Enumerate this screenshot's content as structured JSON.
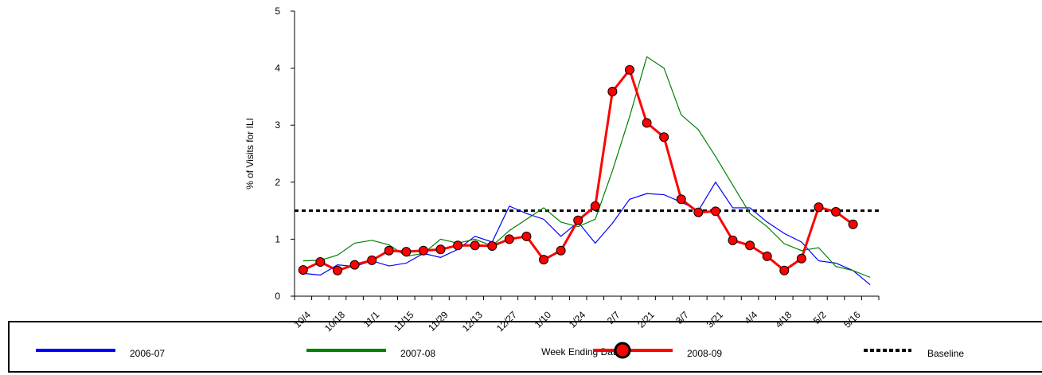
{
  "chart_data": {
    "type": "line",
    "y_label": "% of Visits for ILI",
    "x_label": "Week Ending Dates",
    "categories": [
      "10/4",
      null,
      "10/18",
      null,
      "11/1",
      null,
      "11/15",
      null,
      "11/29",
      null,
      "12/13",
      null,
      "12/27",
      null,
      "1/10",
      null,
      "1/24",
      null,
      "2/7",
      null,
      "2/21",
      null,
      "3/7",
      null,
      "3/21",
      null,
      "4/4",
      null,
      "4/18",
      null,
      "5/2",
      null,
      "5/16",
      null
    ],
    "series": [
      {
        "name": "2006-07",
        "color": "#0000ff",
        "values": [
          0.4,
          0.37,
          0.55,
          0.52,
          0.62,
          0.53,
          0.58,
          0.75,
          0.68,
          0.82,
          1.05,
          0.95,
          1.58,
          1.45,
          1.35,
          1.05,
          1.3,
          0.93,
          1.28,
          1.7,
          1.8,
          1.78,
          1.65,
          1.5,
          2.0,
          1.55,
          1.55,
          1.3,
          1.1,
          0.95,
          0.62,
          0.58,
          0.45,
          0.2
        ]
      },
      {
        "name": "2007-08",
        "color": "#008000",
        "values": [
          0.62,
          0.63,
          0.72,
          0.93,
          0.98,
          0.9,
          0.7,
          0.75,
          1.0,
          0.93,
          1.0,
          0.88,
          1.15,
          1.35,
          1.55,
          1.3,
          1.22,
          1.35,
          2.2,
          3.15,
          4.2,
          4.0,
          3.18,
          2.92,
          2.45,
          1.95,
          1.45,
          1.22,
          0.92,
          0.8,
          0.85,
          0.52,
          0.45,
          0.33
        ]
      },
      {
        "name": "2008-09",
        "color": "#ff0000",
        "markers": true,
        "values": [
          0.46,
          0.6,
          0.45,
          0.55,
          0.63,
          0.8,
          0.78,
          0.8,
          0.82,
          0.89,
          0.89,
          0.88,
          1.0,
          1.05,
          0.64,
          0.8,
          1.33,
          1.58,
          3.59,
          3.97,
          3.04,
          2.79,
          1.7,
          1.47,
          1.49,
          0.98,
          0.89,
          0.7,
          0.45,
          0.66,
          1.56,
          1.48,
          1.26,
          null
        ]
      }
    ],
    "baseline": {
      "name": "Baseline",
      "value": 1.5,
      "color": "#000000"
    },
    "ylim": [
      0,
      5
    ],
    "yticks": [
      0,
      1,
      2,
      3,
      4,
      5
    ]
  }
}
